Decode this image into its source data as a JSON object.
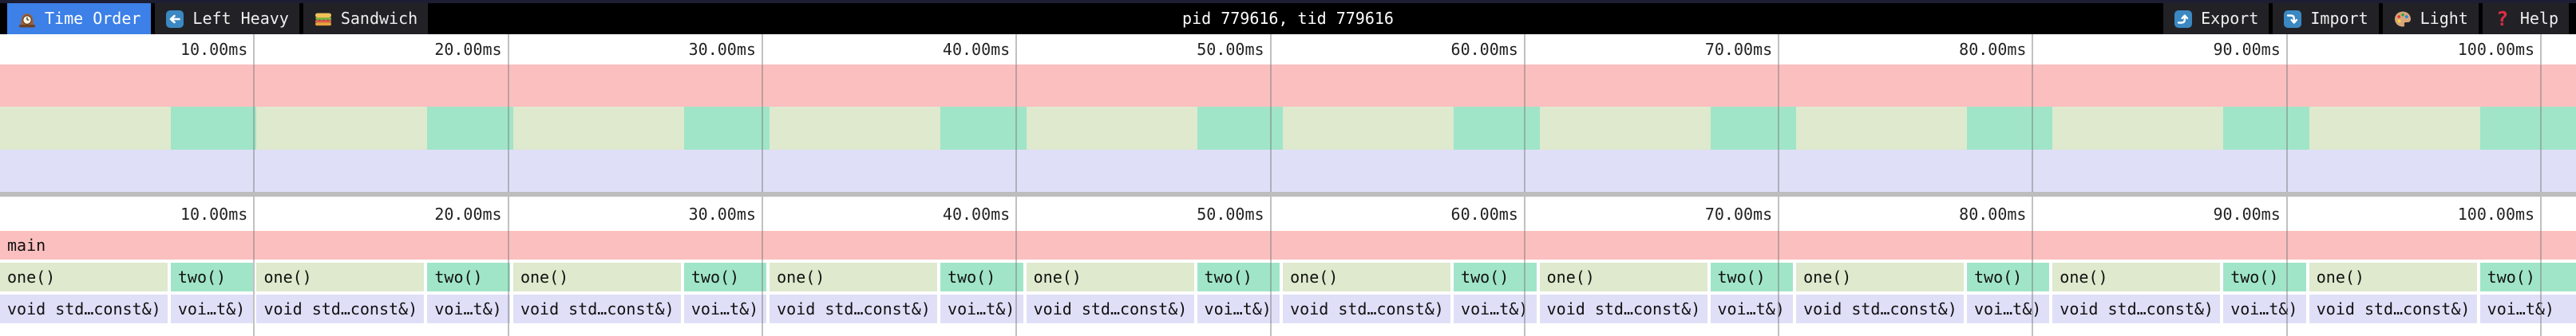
{
  "toolbar": {
    "tabs": [
      {
        "label": "Time Order",
        "icon": "clock-icon",
        "selected": true
      },
      {
        "label": "Left Heavy",
        "icon": "left-arrow-icon",
        "selected": false
      },
      {
        "label": "Sandwich",
        "icon": "sandwich-icon",
        "selected": false
      }
    ],
    "title": "pid 779616, tid 779616",
    "actions": [
      {
        "label": "Export",
        "icon": "export-icon"
      },
      {
        "label": "Import",
        "icon": "import-icon"
      },
      {
        "label": "Light",
        "icon": "palette-icon"
      },
      {
        "label": "Help",
        "icon": "help-icon"
      }
    ]
  },
  "colors": {
    "toolbar_bg": "#000000",
    "toolbar_button_bg": "#222226",
    "selected_tab_bg": "#3C80E8",
    "divider": "#BDBDBD",
    "tick_line": "#767676",
    "axis_text": "#222222",
    "icon_blue": "#3B88C3",
    "help_red": "#DD2E44"
  },
  "chart_data": {
    "type": "flamegraph-timeline",
    "title": "pid 779616, tid 779616",
    "time_unit": "ms",
    "view_start_ms": 0,
    "view_end_ms": 101.38,
    "grid": true,
    "axis_ticks": [
      {
        "ms": 10,
        "label": "10.00ms"
      },
      {
        "ms": 20,
        "label": "20.00ms"
      },
      {
        "ms": 30,
        "label": "30.00ms"
      },
      {
        "ms": 40,
        "label": "40.00ms"
      },
      {
        "ms": 50,
        "label": "50.00ms"
      },
      {
        "ms": 60,
        "label": "60.00ms"
      },
      {
        "ms": 70,
        "label": "70.00ms"
      },
      {
        "ms": 80,
        "label": "80.00ms"
      },
      {
        "ms": 90,
        "label": "90.00ms"
      },
      {
        "ms": 100,
        "label": "100.00ms"
      }
    ],
    "frame_colors": {
      "main": "#FBBFBF",
      "one": "#DEE9CD",
      "two": "#A0E5C8",
      "sleep": "#DFDFF8"
    },
    "levels": [
      {
        "depth": 0,
        "frames": [
          {
            "label": "main",
            "start": 0,
            "end": 101.38,
            "color": "main",
            "clip": true
          }
        ]
      },
      {
        "depth": 1,
        "frames": [
          {
            "label": "one()",
            "start": 0,
            "end": 6.72,
            "color": "one"
          },
          {
            "label": "two()",
            "start": 6.72,
            "end": 10.1,
            "color": "two"
          },
          {
            "label": "one()",
            "start": 10.1,
            "end": 16.82,
            "color": "one"
          },
          {
            "label": "two()",
            "start": 16.82,
            "end": 20.2,
            "color": "two"
          },
          {
            "label": "one()",
            "start": 20.2,
            "end": 26.92,
            "color": "one"
          },
          {
            "label": "two()",
            "start": 26.92,
            "end": 30.29,
            "color": "two"
          },
          {
            "label": "one()",
            "start": 30.29,
            "end": 37.01,
            "color": "one"
          },
          {
            "label": "two()",
            "start": 37.01,
            "end": 40.39,
            "color": "two"
          },
          {
            "label": "one()",
            "start": 40.39,
            "end": 47.11,
            "color": "one"
          },
          {
            "label": "two()",
            "start": 47.11,
            "end": 50.49,
            "color": "two"
          },
          {
            "label": "one()",
            "start": 50.49,
            "end": 57.21,
            "color": "one"
          },
          {
            "label": "two()",
            "start": 57.21,
            "end": 60.59,
            "color": "two"
          },
          {
            "label": "one()",
            "start": 60.59,
            "end": 67.31,
            "color": "one"
          },
          {
            "label": "two()",
            "start": 67.31,
            "end": 70.69,
            "color": "two"
          },
          {
            "label": "one()",
            "start": 70.69,
            "end": 77.41,
            "color": "one"
          },
          {
            "label": "two()",
            "start": 77.41,
            "end": 80.78,
            "color": "two"
          },
          {
            "label": "one()",
            "start": 80.78,
            "end": 87.5,
            "color": "one"
          },
          {
            "label": "two()",
            "start": 87.5,
            "end": 90.88,
            "color": "two"
          },
          {
            "label": "one()",
            "start": 90.88,
            "end": 97.6,
            "color": "one"
          },
          {
            "label": "two()",
            "start": 97.6,
            "end": 101.38,
            "color": "two",
            "clip": true
          }
        ]
      },
      {
        "depth": 2,
        "frames": [
          {
            "label": "void std…const&)",
            "start": 0,
            "end": 6.72,
            "color": "sleep"
          },
          {
            "label": "voi…t&)",
            "start": 6.72,
            "end": 10.1,
            "color": "sleep"
          },
          {
            "label": "void std…const&)",
            "start": 10.1,
            "end": 16.82,
            "color": "sleep"
          },
          {
            "label": "voi…t&)",
            "start": 16.82,
            "end": 20.2,
            "color": "sleep"
          },
          {
            "label": "void std…const&)",
            "start": 20.2,
            "end": 26.92,
            "color": "sleep"
          },
          {
            "label": "voi…t&)",
            "start": 26.92,
            "end": 30.29,
            "color": "sleep"
          },
          {
            "label": "void std…const&)",
            "start": 30.29,
            "end": 37.01,
            "color": "sleep"
          },
          {
            "label": "voi…t&)",
            "start": 37.01,
            "end": 40.39,
            "color": "sleep"
          },
          {
            "label": "void std…const&)",
            "start": 40.39,
            "end": 47.11,
            "color": "sleep"
          },
          {
            "label": "voi…t&)",
            "start": 47.11,
            "end": 50.49,
            "color": "sleep"
          },
          {
            "label": "void std…const&)",
            "start": 50.49,
            "end": 57.21,
            "color": "sleep"
          },
          {
            "label": "voi…t&)",
            "start": 57.21,
            "end": 60.59,
            "color": "sleep"
          },
          {
            "label": "void std…const&)",
            "start": 60.59,
            "end": 67.31,
            "color": "sleep"
          },
          {
            "label": "voi…t&)",
            "start": 67.31,
            "end": 70.69,
            "color": "sleep"
          },
          {
            "label": "void std…const&)",
            "start": 70.69,
            "end": 77.41,
            "color": "sleep"
          },
          {
            "label": "voi…t&)",
            "start": 77.41,
            "end": 80.78,
            "color": "sleep"
          },
          {
            "label": "void std…const&)",
            "start": 80.78,
            "end": 87.5,
            "color": "sleep"
          },
          {
            "label": "voi…t&)",
            "start": 87.5,
            "end": 90.88,
            "color": "sleep"
          },
          {
            "label": "void std…const&)",
            "start": 90.88,
            "end": 97.6,
            "color": "sleep"
          },
          {
            "label": "voi…t&)",
            "start": 97.6,
            "end": 101.38,
            "color": "sleep",
            "clip": true
          }
        ]
      }
    ]
  }
}
